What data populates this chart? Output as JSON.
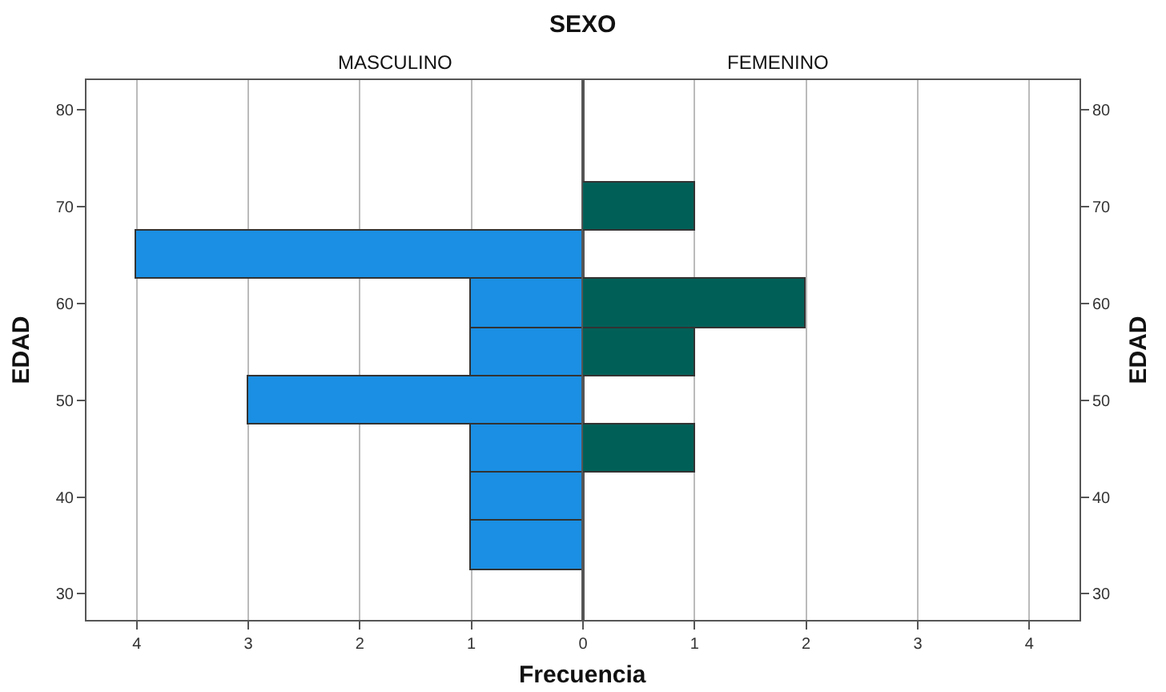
{
  "chart_data": [
    {
      "type": "histogram",
      "orientation": "horizontal",
      "title": "MASCULINO",
      "ylabel": "EDAD",
      "xlabel": "Frecuencia",
      "annotations": [
        "SEXO"
      ],
      "bins": [
        32.5,
        37.5,
        42.5,
        47.5,
        52.5,
        57.5,
        62.5,
        67.5,
        72.5
      ],
      "values": [
        1,
        1,
        1,
        3,
        1,
        1,
        4,
        null
      ],
      "color": "#1a8fe3",
      "xlim": [
        4.45,
        0
      ],
      "xticks": [
        0,
        1,
        2,
        3,
        4
      ],
      "ylim": [
        27.3,
        83.1
      ],
      "yticks": [
        30,
        40,
        50,
        60,
        70,
        80
      ],
      "grid": "x"
    },
    {
      "type": "histogram",
      "orientation": "horizontal",
      "title": "FEMENINO",
      "y2label": "EDAD",
      "bins": [
        32.5,
        37.5,
        42.5,
        47.5,
        52.5,
        57.5,
        62.5,
        67.5,
        72.5
      ],
      "values": [
        null,
        null,
        1,
        null,
        1,
        2,
        null,
        1
      ],
      "color": "#006058",
      "xlim": [
        0,
        4.45
      ],
      "xticks": [
        1,
        2,
        3,
        4
      ],
      "ylim": [
        27.3,
        83.1
      ],
      "yticks": [
        30,
        40,
        50,
        60,
        70,
        80
      ],
      "grid": "x"
    }
  ]
}
